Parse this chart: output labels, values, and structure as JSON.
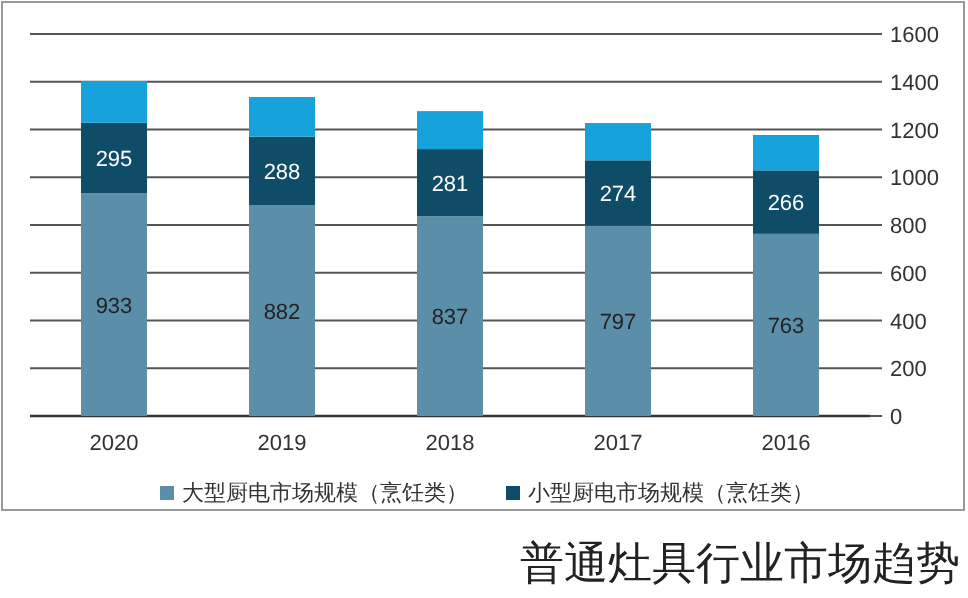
{
  "chart_data": {
    "type": "bar",
    "stacked": true,
    "title": "普通灶具行业市场趋势",
    "categories": [
      "2020",
      "2019",
      "2018",
      "2017",
      "2016"
    ],
    "series": [
      {
        "name": "大型厨电市场规模（烹饪类）",
        "color": "#5b8ea8",
        "values": [
          933,
          882,
          837,
          797,
          763
        ],
        "value_labels": [
          "933",
          "882",
          "837",
          "797",
          "763"
        ]
      },
      {
        "name": "小型厨电市场规模（烹饪类）",
        "color": "#0e4c68",
        "values": [
          295,
          288,
          281,
          274,
          266
        ],
        "value_labels": [
          "295",
          "288",
          "281",
          "274",
          "266"
        ]
      },
      {
        "color": "#18a2dc",
        "values": [
          175,
          166,
          159,
          156,
          148
        ]
      }
    ],
    "ylim": [
      0,
      1600
    ],
    "yticks": [
      0,
      200,
      400,
      600,
      800,
      1000,
      1200,
      1400,
      1600
    ],
    "grid": "y",
    "legend": "bottom"
  }
}
